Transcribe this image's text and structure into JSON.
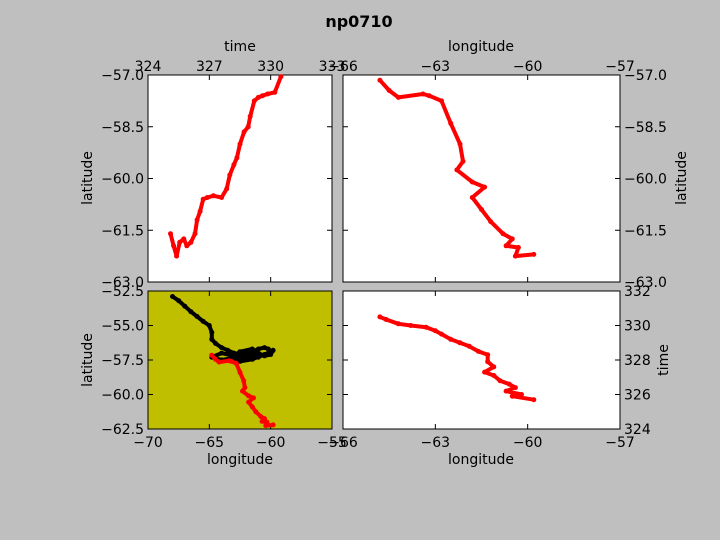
{
  "figure": {
    "title": "np0710",
    "background": "#bfbfbf",
    "track_color": "#ff0000",
    "context_color": "#000000",
    "map_background": "#bfbf00"
  },
  "chart_data": [
    {
      "id": "time_vs_latitude",
      "type": "line",
      "xlabel": "time",
      "ylabel": "latitude",
      "xlim": [
        324,
        333
      ],
      "ylim": [
        -63.0,
        -57.0
      ],
      "xticks": [
        "324",
        "327",
        "330",
        "333"
      ],
      "yticks": [
        "−57.0",
        "−58.5",
        "−60.0",
        "−61.5",
        "−63.0"
      ],
      "series": [
        {
          "color": "#ff0000",
          "x": [
            325.1,
            325.25,
            325.4,
            325.55,
            325.75,
            325.9,
            326.1,
            326.3,
            326.4,
            326.55,
            326.7,
            326.9,
            327.2,
            327.6,
            327.85,
            328.0,
            328.2,
            328.35,
            328.5,
            328.7,
            328.9,
            329.0,
            329.2,
            329.4,
            329.6,
            329.85,
            330.2,
            330.5
          ],
          "y": [
            -61.6,
            -61.95,
            -62.25,
            -61.85,
            -61.75,
            -61.95,
            -61.85,
            -61.6,
            -61.2,
            -60.95,
            -60.6,
            -60.55,
            -60.5,
            -60.55,
            -60.3,
            -59.9,
            -59.6,
            -59.4,
            -59.0,
            -58.65,
            -58.5,
            -58.2,
            -57.75,
            -57.65,
            -57.6,
            -57.55,
            -57.5,
            -57.05
          ]
        }
      ]
    },
    {
      "id": "longitude_vs_latitude",
      "type": "line",
      "xlabel": "longitude",
      "ylabel": "latitude",
      "xlim": [
        -66,
        -57
      ],
      "ylim": [
        -63.0,
        -57.0
      ],
      "xticks": [
        "−66",
        "−63",
        "−60",
        "−57"
      ],
      "yticks": [
        "−57.0",
        "−58.5",
        "−60.0",
        "−61.5",
        "−63.0"
      ],
      "series": [
        {
          "color": "#ff0000",
          "x": [
            -64.8,
            -64.5,
            -64.2,
            -63.4,
            -63.2,
            -62.8,
            -62.5,
            -62.2,
            -62.1,
            -62.3,
            -61.8,
            -61.4,
            -61.8,
            -61.5,
            -61.2,
            -60.8,
            -60.5,
            -60.7,
            -60.3,
            -60.4,
            -59.8
          ],
          "y": [
            -57.15,
            -57.45,
            -57.65,
            -57.55,
            -57.6,
            -57.75,
            -58.4,
            -59.0,
            -59.5,
            -59.75,
            -60.1,
            -60.25,
            -60.55,
            -60.9,
            -61.25,
            -61.6,
            -61.75,
            -61.95,
            -62.0,
            -62.25,
            -62.2
          ]
        }
      ]
    },
    {
      "id": "map_longitude_vs_latitude",
      "type": "line",
      "xlabel": "longitude",
      "ylabel": "latitude",
      "xlim": [
        -70,
        -55
      ],
      "ylim": [
        -62.5,
        -52.5
      ],
      "xticks": [
        "−70",
        "−65",
        "−60",
        "−55"
      ],
      "yticks": [
        "−52.5",
        "−55.0",
        "−57.5",
        "−60.0",
        "−62.5"
      ],
      "background": "#bfbf00",
      "series": [
        {
          "color": "#000000",
          "x": [
            -68.0,
            -67.5,
            -67.0,
            -66.5,
            -66.0,
            -65.5,
            -65.0,
            -64.8,
            -64.8,
            -64.5,
            -64.0,
            -63.5,
            -63.0,
            -62.5,
            -62.0,
            -61.5,
            -61.0,
            -60.5,
            -60.2,
            -59.9,
            -60.0,
            -60.5,
            -61.0,
            -61.5,
            -61.0,
            -62.0,
            -63.0,
            -64.0,
            -64.8,
            -64.0,
            -63.0,
            -62.0,
            -61.2,
            -61.5,
            -62.5,
            -63.2,
            -62.5,
            -61.5,
            -60.5,
            -59.8
          ],
          "y": [
            -52.9,
            -53.2,
            -53.6,
            -54.0,
            -54.35,
            -54.7,
            -55.0,
            -55.5,
            -56.0,
            -56.3,
            -56.6,
            -56.8,
            -57.0,
            -57.1,
            -57.0,
            -56.9,
            -56.7,
            -56.6,
            -56.7,
            -56.9,
            -57.1,
            -57.2,
            -57.0,
            -56.8,
            -57.3,
            -57.4,
            -57.2,
            -57.0,
            -57.3,
            -57.5,
            -57.35,
            -57.2,
            -57.0,
            -56.7,
            -56.9,
            -57.3,
            -57.6,
            -57.45,
            -57.1,
            -56.8
          ]
        },
        {
          "color": "#ff0000",
          "x": [
            -64.8,
            -64.5,
            -64.2,
            -63.4,
            -63.2,
            -62.8,
            -62.5,
            -62.2,
            -62.1,
            -62.3,
            -61.8,
            -61.4,
            -61.8,
            -61.5,
            -61.2,
            -60.8,
            -60.5,
            -60.7,
            -60.3,
            -60.4,
            -59.8
          ],
          "y": [
            -57.15,
            -57.45,
            -57.65,
            -57.55,
            -57.6,
            -57.75,
            -58.4,
            -59.0,
            -59.5,
            -59.75,
            -60.1,
            -60.25,
            -60.55,
            -60.9,
            -61.25,
            -61.6,
            -61.75,
            -61.95,
            -62.0,
            -62.25,
            -62.2
          ]
        }
      ]
    },
    {
      "id": "longitude_vs_time",
      "type": "line",
      "xlabel": "longitude",
      "ylabel": "time",
      "xlim": [
        -66,
        -57
      ],
      "ylim": [
        324,
        332
      ],
      "xticks": [
        "−66",
        "−63",
        "−60",
        "−57"
      ],
      "yticks": [
        "332",
        "330",
        "328",
        "326",
        "324"
      ],
      "series": [
        {
          "color": "#ff0000",
          "x": [
            -64.8,
            -64.6,
            -64.2,
            -63.8,
            -63.3,
            -63.0,
            -62.8,
            -62.5,
            -62.2,
            -61.9,
            -61.6,
            -61.3,
            -61.3,
            -61.1,
            -61.4,
            -61.1,
            -60.9,
            -60.6,
            -60.4,
            -60.7,
            -60.2,
            -60.5,
            -59.8
          ],
          "y": [
            330.5,
            330.35,
            330.1,
            330.0,
            329.9,
            329.7,
            329.5,
            329.2,
            329.0,
            328.8,
            328.5,
            328.3,
            327.9,
            327.6,
            327.3,
            327.1,
            326.8,
            326.6,
            326.4,
            326.2,
            326.0,
            325.9,
            325.7
          ]
        }
      ]
    }
  ]
}
